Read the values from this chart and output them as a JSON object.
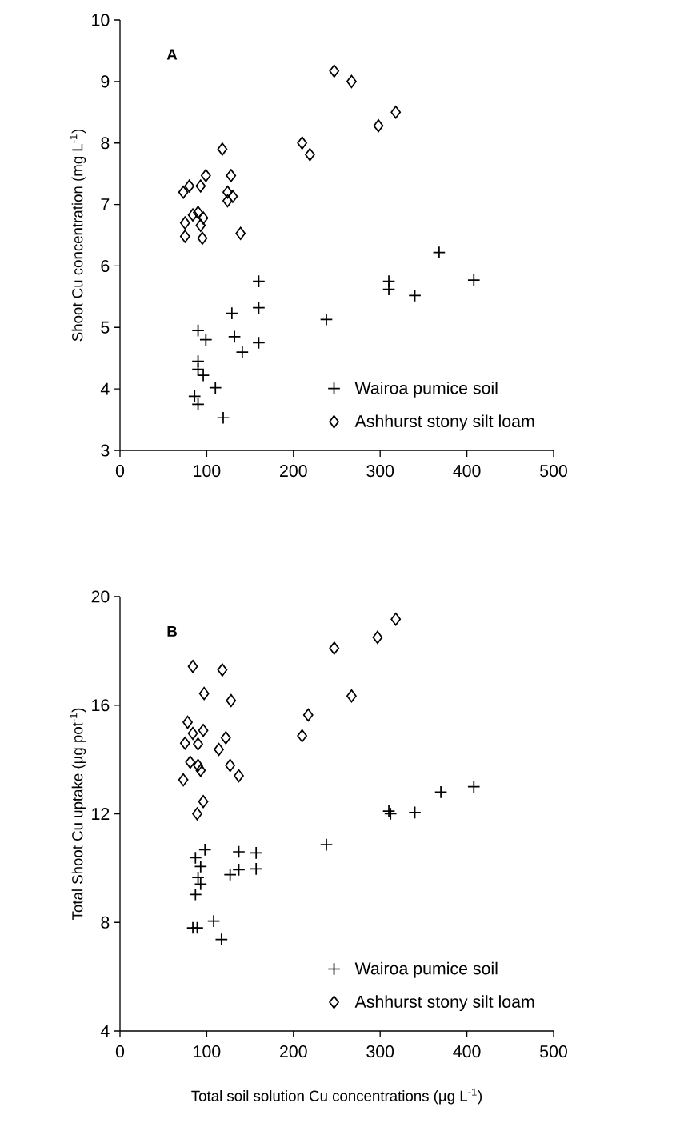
{
  "chart_data": [
    {
      "type": "scatter",
      "title": "A",
      "ylabel": "Shoot Cu concentration (mg L$^{-1}$)",
      "xlim": [
        0,
        500
      ],
      "ylim": [
        3,
        10
      ],
      "xticks": [
        0,
        100,
        200,
        300,
        400,
        500
      ],
      "yticks": [
        3,
        4,
        5,
        6,
        7,
        8,
        9,
        10
      ],
      "legend": "bottom right",
      "series": [
        {
          "name": "Wairoa pumice soil",
          "color": "#000000",
          "marker": "cross",
          "x": [
            160,
            160,
            129,
            160,
            141,
            132,
            90,
            99,
            90,
            90,
            96,
            110,
            86,
            90,
            119,
            238,
            310,
            310,
            340,
            368,
            408
          ],
          "values": [
            5.75,
            5.32,
            5.23,
            4.75,
            4.6,
            4.85,
            4.95,
            4.8,
            4.45,
            4.32,
            4.22,
            4.02,
            3.88,
            3.75,
            3.53,
            5.13,
            5.75,
            5.62,
            5.52,
            6.22,
            5.77
          ]
        },
        {
          "name": "Ashhurst stony silt loam",
          "color": "#000000",
          "marker": "diamond",
          "x": [
            247,
            267,
            318,
            298,
            210,
            219,
            118,
            99,
            128,
            80,
            124,
            73,
            130,
            93,
            124,
            84,
            90,
            96,
            75,
            93,
            75,
            95,
            139
          ],
          "values": [
            9.17,
            9.0,
            8.5,
            8.28,
            8.0,
            7.81,
            7.9,
            7.47,
            7.47,
            7.3,
            7.2,
            7.2,
            7.13,
            7.3,
            7.06,
            6.83,
            6.87,
            6.78,
            6.7,
            6.66,
            6.48,
            6.45,
            6.53
          ]
        }
      ]
    },
    {
      "type": "scatter",
      "title": "B",
      "xlabel": "Total soil solution Cu concentrations (µg L$^{-1}$)",
      "ylabel": "Total Shoot Cu uptake (µg pot$^{-1}$)",
      "xlim": [
        0,
        500
      ],
      "ylim": [
        4,
        20
      ],
      "xticks": [
        0,
        100,
        200,
        300,
        400,
        500
      ],
      "yticks": [
        4,
        8,
        12,
        16,
        20
      ],
      "legend": "bottom right",
      "series": [
        {
          "name": "Wairoa pumice soil",
          "color": "#000000",
          "marker": "cross",
          "x": [
            98,
            87,
            137,
            157,
            127,
            137,
            157,
            93,
            90,
            93,
            87,
            84,
            89,
            108,
            117,
            238,
            310,
            312,
            340,
            370,
            408
          ],
          "values": [
            10.68,
            10.38,
            10.6,
            10.56,
            9.76,
            9.94,
            9.97,
            10.06,
            9.65,
            9.41,
            9.03,
            7.8,
            7.8,
            8.05,
            7.37,
            10.86,
            12.1,
            12.0,
            12.05,
            12.8,
            13.0
          ]
        },
        {
          "name": "Ashhurst stony silt loam",
          "color": "#000000",
          "marker": "diamond",
          "x": [
            318,
            297,
            247,
            84,
            118,
            97,
            128,
            267,
            217,
            210,
            78,
            84,
            96,
            122,
            75,
            90,
            114,
            81,
            90,
            73,
            93,
            127,
            137,
            96,
            89
          ],
          "values": [
            19.17,
            18.5,
            18.1,
            17.43,
            17.3,
            16.43,
            16.17,
            16.34,
            15.64,
            14.87,
            15.37,
            14.96,
            15.07,
            14.8,
            14.6,
            14.57,
            14.37,
            13.9,
            13.78,
            13.25,
            13.6,
            13.78,
            13.4,
            12.45,
            12.0
          ]
        }
      ]
    }
  ]
}
